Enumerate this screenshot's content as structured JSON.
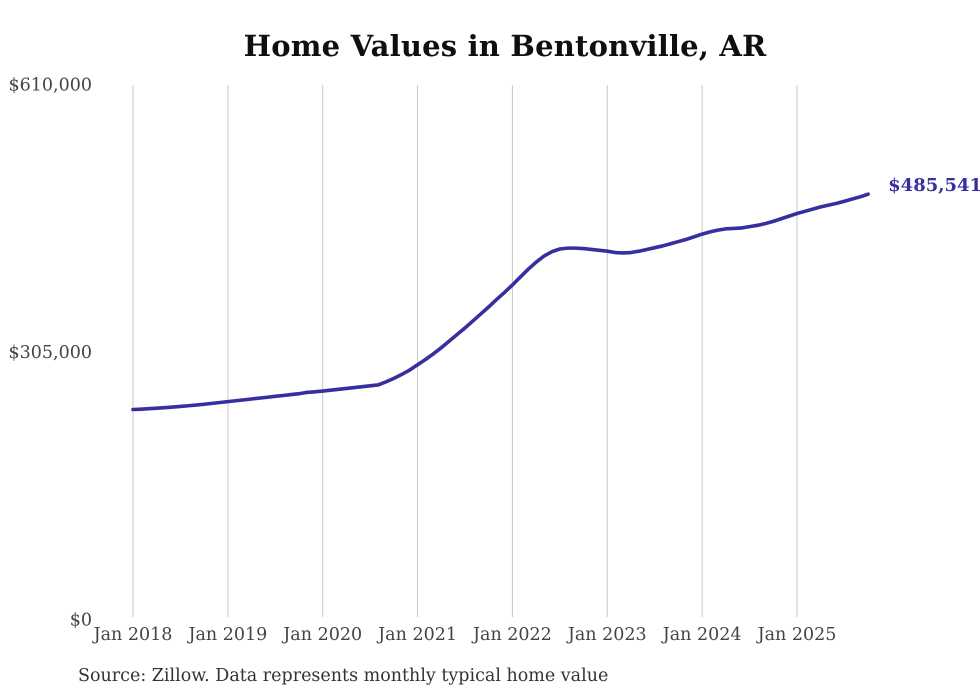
{
  "chart": {
    "title": "Home Values in Bentonville, AR",
    "source_note": "Source: Zillow. Data represents monthly typical home value",
    "current_value_label": "$485,541"
  },
  "colors": {
    "line": "#372f9f",
    "end_label": "#372f9f",
    "grid": "#c9c9c9",
    "tick_text": "#444444",
    "title_text": "#0f0f0f",
    "source_text": "#333333",
    "background": "#ffffff"
  },
  "chart_data": {
    "type": "line",
    "title": "Home Values in Bentonville, AR",
    "series_name": "Typical home value",
    "unit": "USD",
    "frequency": "monthly",
    "start_month": "2018-01",
    "end_month": "2025-10",
    "grid": "vertical-only",
    "legend": "none",
    "ylim": [
      0,
      610000
    ],
    "y_ticks": [
      {
        "value": 0,
        "label": "$0"
      },
      {
        "value": 305000,
        "label": "$305,000"
      },
      {
        "value": 610000,
        "label": "$610,000"
      }
    ],
    "x_ticks": [
      {
        "month_index": 0,
        "label": "Jan 2018"
      },
      {
        "month_index": 12,
        "label": "Jan 2019"
      },
      {
        "month_index": 24,
        "label": "Jan 2020"
      },
      {
        "month_index": 36,
        "label": "Jan 2021"
      },
      {
        "month_index": 48,
        "label": "Jan 2022"
      },
      {
        "month_index": 60,
        "label": "Jan 2023"
      },
      {
        "month_index": 72,
        "label": "Jan 2024"
      },
      {
        "month_index": 84,
        "label": "Jan 2025"
      }
    ],
    "end_label": "$485,541",
    "final_value": 485541,
    "values": [
      240000,
      240400,
      240900,
      241500,
      242100,
      242800,
      243500,
      244300,
      245100,
      246000,
      247000,
      248000,
      249000,
      250000,
      251000,
      252000,
      253000,
      254000,
      255000,
      256000,
      257000,
      258000,
      259500,
      260200,
      261000,
      262000,
      263000,
      264000,
      265000,
      266000,
      267000,
      268000,
      271500,
      275500,
      280000,
      285000,
      291000,
      297000,
      303500,
      310500,
      318000,
      325500,
      333000,
      341000,
      349000,
      357000,
      365500,
      373500,
      382000,
      391000,
      400000,
      408000,
      415000,
      420000,
      423000,
      424000,
      424000,
      423500,
      422500,
      421500,
      420500,
      419000,
      418500,
      419000,
      420500,
      422500,
      424500,
      426500,
      429000,
      431500,
      434000,
      437000,
      440000,
      442500,
      444500,
      446000,
      446500,
      447000,
      448500,
      450000,
      452000,
      454500,
      457500,
      460500,
      463500,
      466000,
      468500,
      471000,
      473000,
      475000,
      477500,
      480000,
      482500,
      485541
    ]
  }
}
